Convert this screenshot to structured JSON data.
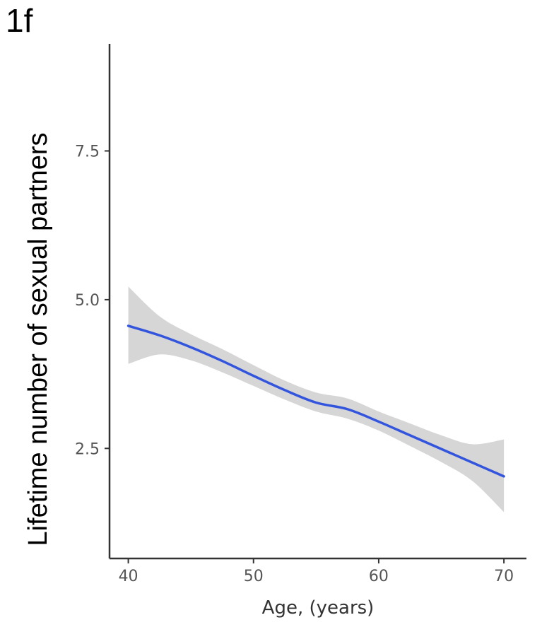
{
  "panel_label": "1f",
  "chart_data": {
    "type": "line",
    "title": "",
    "xlabel": "Age, (years)",
    "ylabel": "Lifetime number of sexual partners",
    "xlim": [
      38.5,
      71.8
    ],
    "ylim": [
      0.65,
      9.3
    ],
    "x_ticks": [
      40,
      50,
      60,
      70
    ],
    "y_ticks": [
      2.5,
      5.0,
      7.5
    ],
    "x_tick_labels": [
      "40",
      "50",
      "60",
      "70"
    ],
    "y_tick_labels": [
      "2.5",
      "5.0",
      "7.5"
    ],
    "grid": false,
    "series": [
      {
        "name": "",
        "color": "#3355dd",
        "x": [
          40,
          42.5,
          45,
          47.5,
          50,
          52.5,
          55,
          57.5,
          60,
          62.5,
          65,
          67.5,
          70
        ],
        "y": [
          4.56,
          4.4,
          4.2,
          3.97,
          3.72,
          3.48,
          3.27,
          3.16,
          2.95,
          2.72,
          2.49,
          2.26,
          2.03
        ]
      }
    ],
    "confidence_band": {
      "color": "#d6d6d6",
      "x": [
        40,
        42.5,
        45,
        47.5,
        50,
        52.5,
        55,
        57.5,
        60,
        62.5,
        65,
        67.5,
        70
      ],
      "lower": [
        3.92,
        4.08,
        3.98,
        3.78,
        3.55,
        3.32,
        3.12,
        3.0,
        2.8,
        2.54,
        2.27,
        1.95,
        1.43
      ],
      "upper": [
        5.22,
        4.72,
        4.42,
        4.17,
        3.9,
        3.64,
        3.44,
        3.34,
        3.12,
        2.92,
        2.72,
        2.57,
        2.65
      ]
    }
  }
}
